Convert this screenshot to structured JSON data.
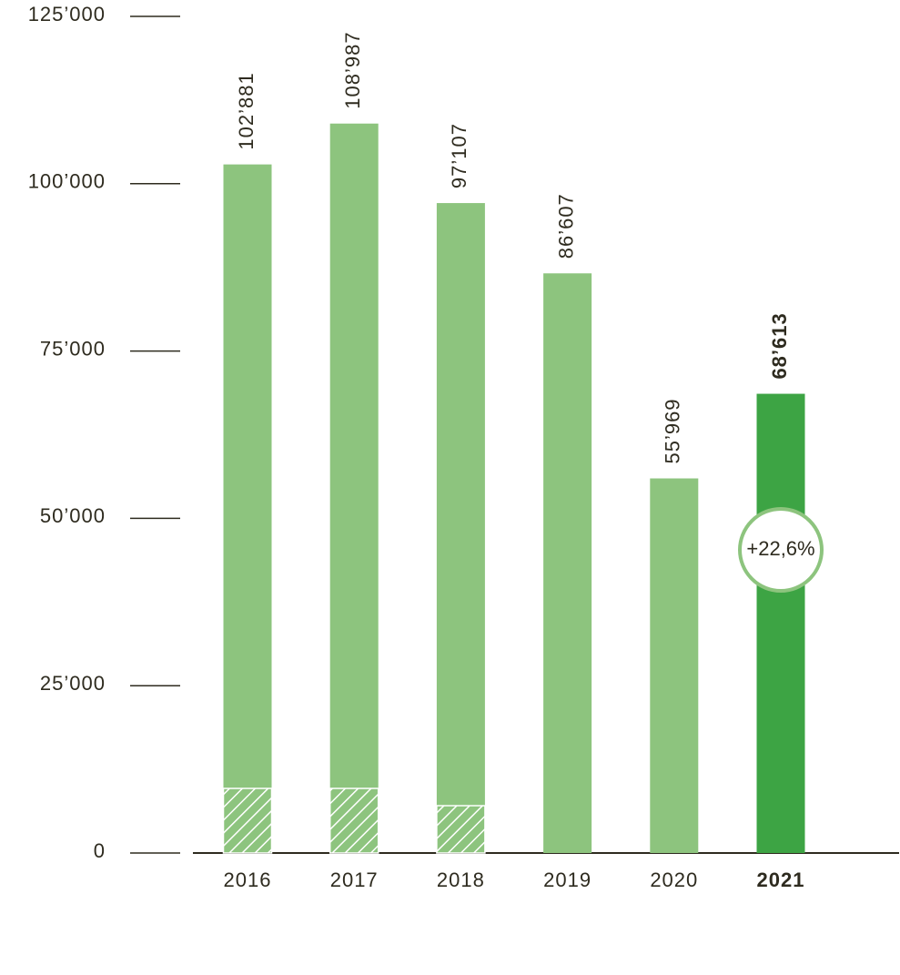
{
  "chart_data": {
    "type": "bar",
    "categories": [
      "2016",
      "2017",
      "2018",
      "2019",
      "2020",
      "2021"
    ],
    "values": [
      102881,
      108987,
      97107,
      86607,
      55969,
      68613
    ],
    "value_labels": [
      "102’881",
      "108’987",
      "97’107",
      "86’607",
      "55’969",
      "68’613"
    ],
    "subset_values": [
      9650,
      9650,
      7070,
      null,
      null,
      null
    ],
    "colors": [
      "#8dc47e",
      "#8dc47e",
      "#8dc47e",
      "#8dc47e",
      "#8dc47e",
      "#3da444"
    ],
    "highlight_index": 5,
    "annotation": "+22,6%",
    "ylim": [
      0,
      125000
    ],
    "yticks": [
      0,
      {
        "value": 25000,
        "label": "25’000"
      },
      {
        "value": 50000,
        "label": "50’000"
      },
      {
        "value": 75000,
        "label": "75’000"
      },
      {
        "value": 100000,
        "label": "100’000"
      },
      {
        "value": 125000,
        "label": "125’000"
      }
    ]
  }
}
